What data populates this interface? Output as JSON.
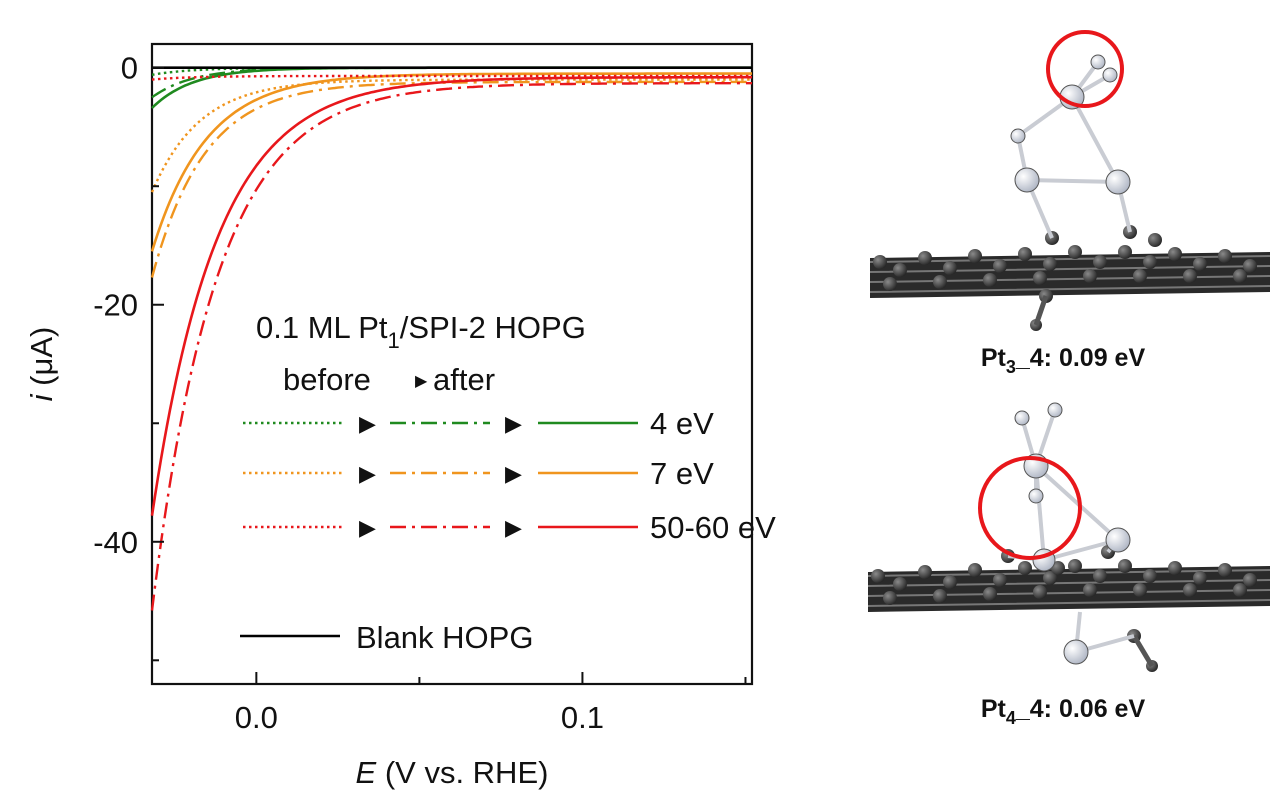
{
  "chart_data": {
    "type": "line",
    "title": "",
    "xlabel_var": "E",
    "xlabel_rest": " (V vs. RHE)",
    "ylabel_var": "i",
    "ylabel_rest": " (μA)",
    "xlim": [
      -0.032,
      0.152
    ],
    "ylim": [
      -52,
      2
    ],
    "x_ticks": [
      {
        "value": 0.0,
        "label": "0.0"
      },
      {
        "value": 0.1,
        "label": "0.1"
      }
    ],
    "y_ticks": [
      {
        "value": 0,
        "label": "0"
      },
      {
        "value": -20,
        "label": "-20"
      },
      {
        "value": -40,
        "label": "-40"
      }
    ],
    "legend": {
      "title_prefix": "0.1 ML Pt",
      "title_sub": "1",
      "title_suffix": "/SPI-2 HOPG",
      "subtitle_left": "before",
      "subtitle_right": "after",
      "arrow_glyph": "▶",
      "placement": "center",
      "rows": [
        {
          "label": "4 eV",
          "color": "#1f8a1f"
        },
        {
          "label": "7 eV",
          "color": "#f0951e"
        },
        {
          "label": "50-60 eV",
          "color": "#e8171b"
        }
      ],
      "blank_label": "Blank HOPG",
      "blank_color": "#000000"
    },
    "series": [
      {
        "group": "4 eV",
        "state": "before",
        "style": "dotted",
        "color": "#1f8a1f",
        "a": 0.6,
        "k": 80,
        "offset": 0.0
      },
      {
        "group": "4 eV",
        "state": "middle",
        "style": "dashdot",
        "color": "#1f8a1f",
        "a": 2.5,
        "k": 80,
        "offset": 0.0
      },
      {
        "group": "4 eV",
        "state": "after",
        "style": "solid",
        "color": "#1f8a1f",
        "a": 3.4,
        "k": 80,
        "offset": 0.0
      },
      {
        "group": "7 eV",
        "state": "before",
        "style": "dotted",
        "color": "#f0951e",
        "a": 9.5,
        "k": 68,
        "offset": -1.0
      },
      {
        "group": "7 eV",
        "state": "middle",
        "style": "dashdot",
        "color": "#f0951e",
        "a": 16.5,
        "k": 62,
        "offset": -1.2
      },
      {
        "group": "7 eV",
        "state": "after",
        "style": "solid",
        "color": "#f0951e",
        "a": 15,
        "k": 60,
        "offset": -0.5
      },
      {
        "group": "50-60 eV",
        "state": "before",
        "style": "dotted",
        "color": "#e8171b",
        "a": 0.3,
        "k": 80,
        "offset": -0.7
      },
      {
        "group": "50-60 eV",
        "state": "middle",
        "style": "dashdot",
        "color": "#e8171b",
        "a": 44.5,
        "k": 50,
        "offset": -1.3
      },
      {
        "group": "50-60 eV",
        "state": "after",
        "style": "solid",
        "color": "#e8171b",
        "a": 37,
        "k": 50,
        "offset": -0.8
      },
      {
        "group": "Blank HOPG",
        "state": "blank",
        "style": "solid",
        "color": "#000000",
        "a": 0,
        "k": 1,
        "offset": 0.0
      }
    ]
  },
  "structures": [
    {
      "prefix": "Pt",
      "sub": "3",
      "suffix": "_4: 0.09 eV"
    },
    {
      "prefix": "Pt",
      "sub": "4",
      "suffix": "_4: 0.06 eV"
    }
  ]
}
